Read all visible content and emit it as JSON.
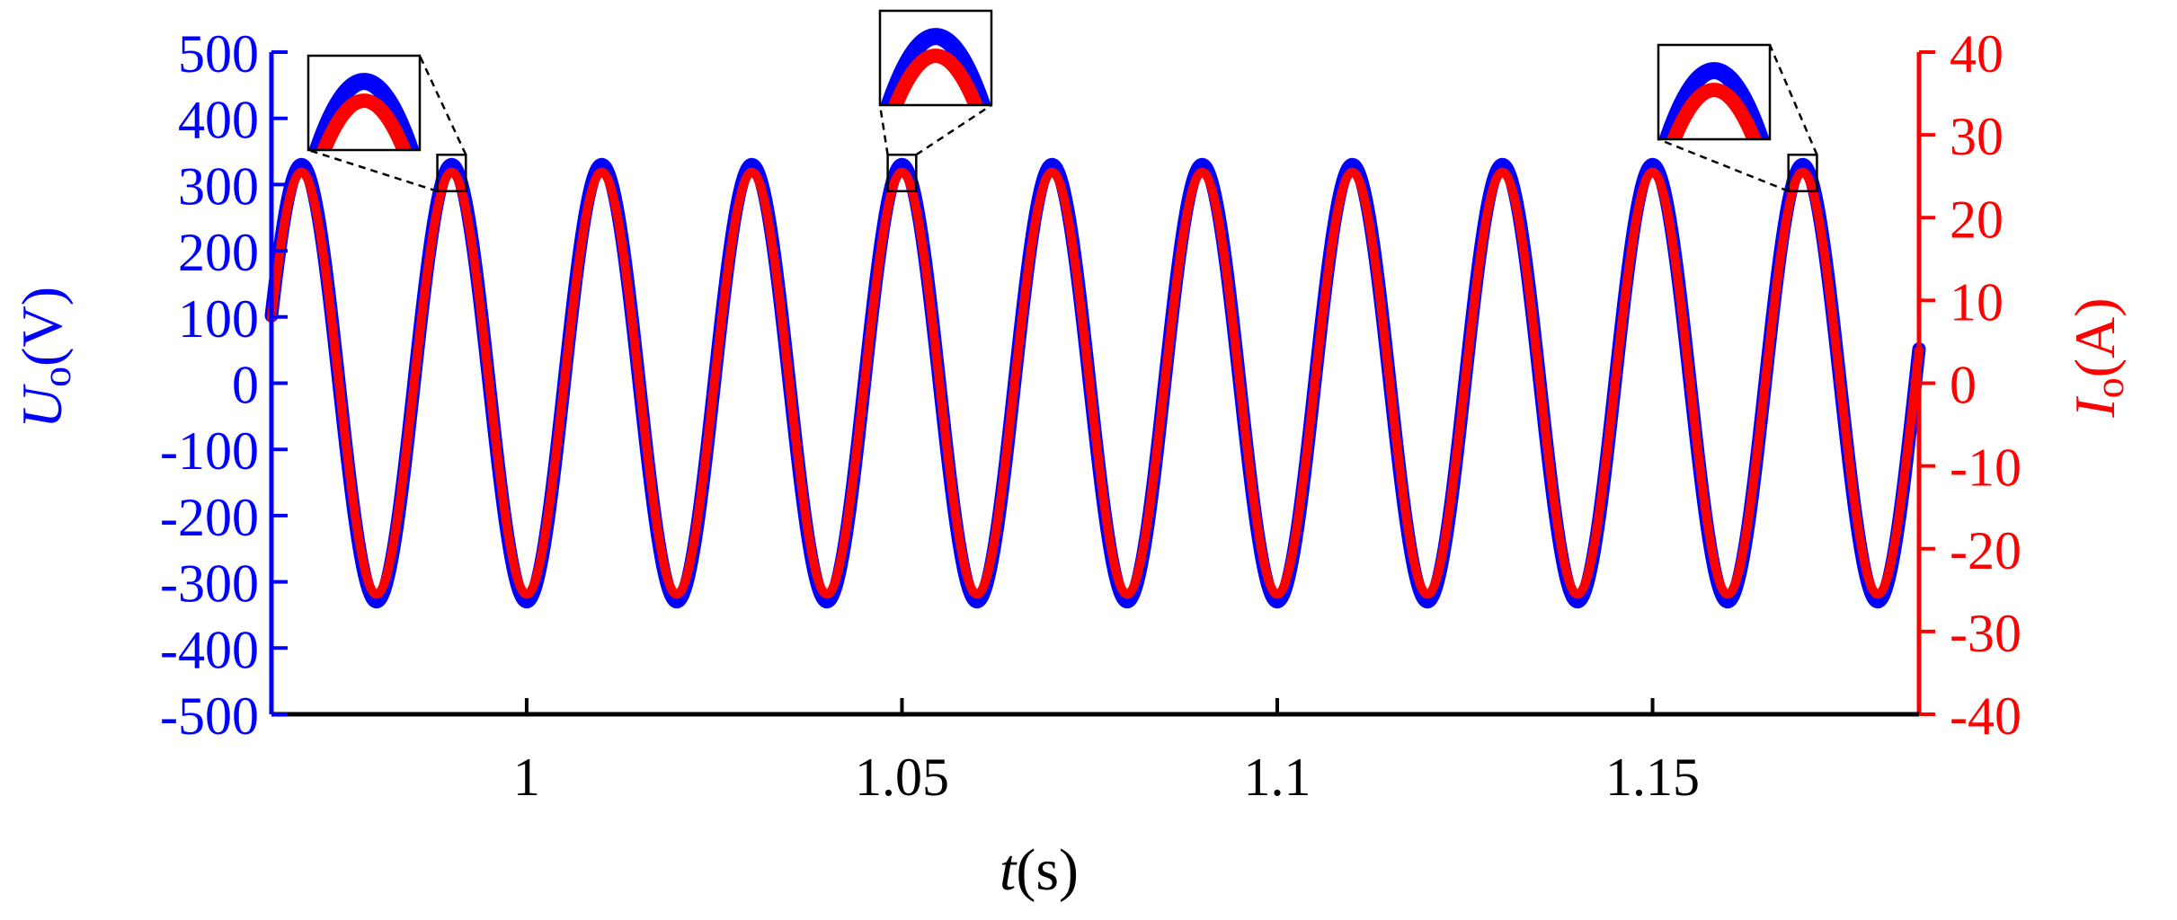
{
  "chart_data": {
    "type": "line",
    "title": "",
    "xlabel": {
      "italic": "t",
      "rest": "(s)"
    },
    "ylabel_left": {
      "italic": "U",
      "sub": "o",
      "rest": "(V)"
    },
    "ylabel_right": {
      "italic": "I",
      "sub": "o",
      "rest": "(A)"
    },
    "xlim": [
      0.966,
      1.1855
    ],
    "ylim_left": [
      -500,
      500
    ],
    "ylim_right": [
      -40,
      40
    ],
    "x_ticks": [
      1,
      1.05,
      1.1,
      1.15
    ],
    "x_tick_labels": [
      "1",
      "1.05",
      "1.1",
      "1.15"
    ],
    "y_left_ticks": [
      500,
      400,
      300,
      200,
      100,
      0,
      -100,
      -200,
      -300,
      -400,
      -500
    ],
    "y_left_tick_labels": [
      "500",
      "400",
      "300",
      "200",
      "100",
      "0",
      "-100",
      "-200",
      "-300",
      "-400",
      "-500"
    ],
    "y_right_ticks": [
      40,
      30,
      20,
      10,
      0,
      -10,
      -20,
      -30,
      -40
    ],
    "y_right_tick_labels": [
      "40",
      "30",
      "20",
      "10",
      "0",
      "-10",
      "-20",
      "-30",
      "-40"
    ],
    "grid": false,
    "legend": "none",
    "series": [
      {
        "axis": "left",
        "color": "#0000ff",
        "kind": "sine",
        "amplitude": 330,
        "frequency_hz": 50,
        "peak_time": 0.97
      },
      {
        "axis": "right",
        "color": "#ff0000",
        "kind": "sine",
        "amplitude": 25.5,
        "frequency_hz": 50,
        "peak_time": 0.97
      }
    ],
    "zoom_insets": [
      {
        "peak_time": 0.99,
        "placement": "upper-left"
      },
      {
        "peak_time": 1.05,
        "placement": "top-center"
      },
      {
        "peak_time": 1.17,
        "placement": "upper-right"
      }
    ],
    "colors": {
      "left_axis": "#0000ff",
      "right_axis": "#ff0000",
      "frame": "#000000"
    }
  }
}
